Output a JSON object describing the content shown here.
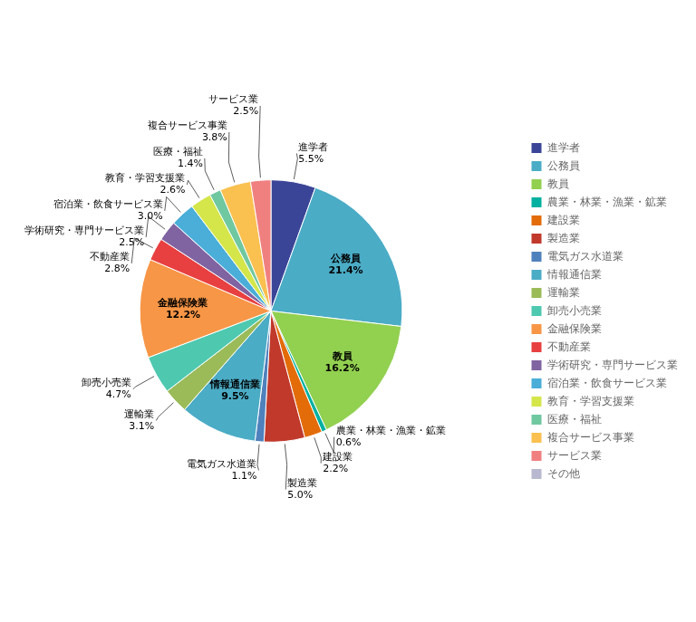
{
  "chart_data": {
    "type": "pie",
    "categories": [
      "進学者",
      "公務員",
      "教員",
      "農業・林業・漁業・鉱業",
      "建設業",
      "製造業",
      "電気ガス水道業",
      "情報通信業",
      "運輸業",
      "卸売小売業",
      "金融保険業",
      "不動産業",
      "学術研究・専門サービス業",
      "宿泊業・飲食サービス業",
      "教育・学習支援業",
      "医療・福祉",
      "複合サービス事業",
      "サービス業",
      "その他"
    ],
    "values": [
      5.5,
      21.4,
      16.2,
      0.6,
      2.2,
      5.0,
      1.1,
      9.5,
      3.1,
      4.7,
      12.2,
      2.8,
      2.5,
      3.0,
      2.6,
      1.4,
      3.8,
      2.5,
      0.0
    ],
    "value_labels": [
      "5.5%",
      "21.4%",
      "16.2%",
      "0.6%",
      "2.2%",
      "5.0%",
      "1.1%",
      "9.5%",
      "3.1%",
      "4.7%",
      "12.2%",
      "2.8%",
      "2.5%",
      "3.0%",
      "2.6%",
      "1.4%",
      "3.8%",
      "2.5%",
      null
    ],
    "colors": [
      "#3b4598",
      "#4bacc6",
      "#92d050",
      "#00b0a0",
      "#e36c09",
      "#c0392b",
      "#4f81bd",
      "#4bacc6",
      "#9bbb59",
      "#4ec9b0",
      "#f79646",
      "#e84040",
      "#8064a2",
      "#4aaed9",
      "#d4e64a",
      "#70c8a0",
      "#fac050",
      "#f08080",
      "#b8b8d0"
    ],
    "data_labels": true,
    "legend": "right"
  }
}
